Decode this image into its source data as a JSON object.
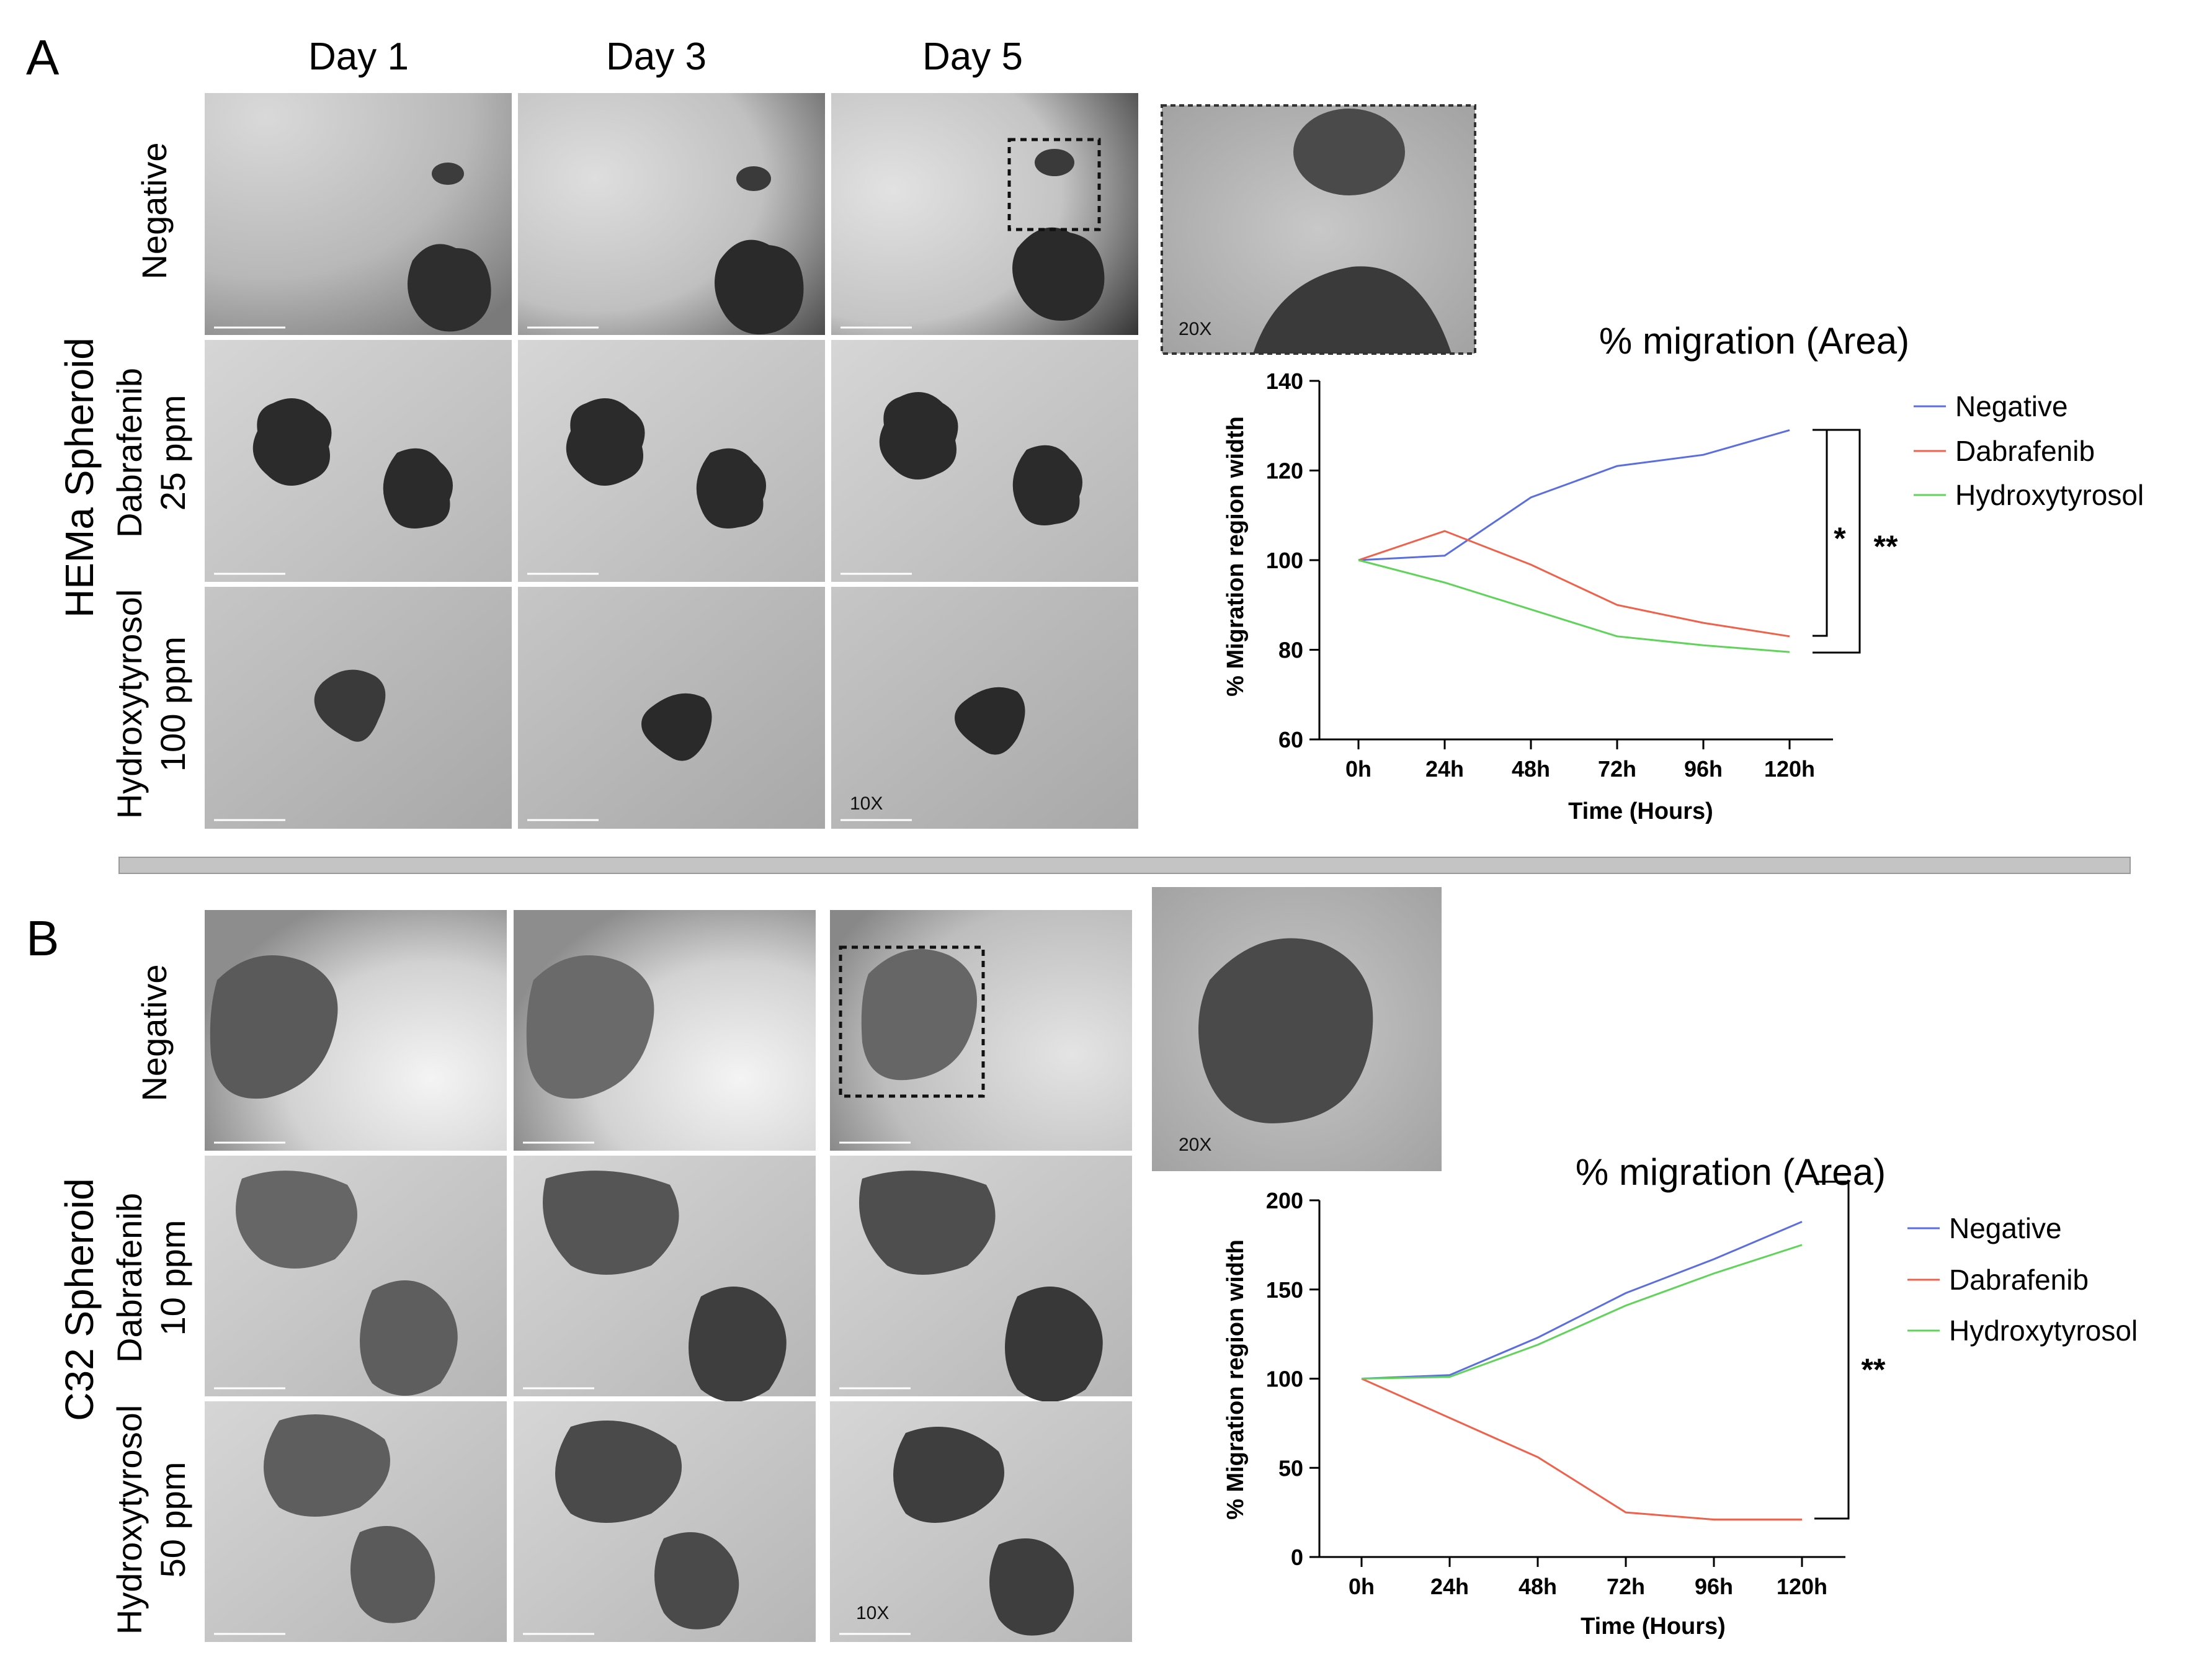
{
  "panels": [
    {
      "letter": "A",
      "spheroid_label": "HEMa Spheroid",
      "columns": [
        "Day 1",
        "Day 3",
        "Day 5"
      ],
      "rows": [
        {
          "lines": [
            "Negative"
          ]
        },
        {
          "lines": [
            "Dabrafenib",
            "25 ppm"
          ]
        },
        {
          "lines": [
            "Hydroxytyrosol",
            "100 ppm"
          ]
        }
      ],
      "magnification_main": "10X",
      "magnification_inset": "20X"
    },
    {
      "letter": "B",
      "spheroid_label": "C32 Spheroid",
      "columns": [],
      "rows": [
        {
          "lines": [
            "Negative"
          ]
        },
        {
          "lines": [
            "Dabrafenib",
            "10 ppm"
          ]
        },
        {
          "lines": [
            "Hydroxytyrosol",
            "50 ppm"
          ]
        }
      ],
      "magnification_main": "10X",
      "magnification_inset": "20X"
    }
  ],
  "chart_data": [
    {
      "type": "line",
      "title": "% migration (Area)",
      "xlabel": "Time (Hours)",
      "ylabel": "% Migration region width",
      "categories": [
        "0h",
        "24h",
        "48h",
        "72h",
        "96h",
        "120h"
      ],
      "ylim": [
        60,
        140
      ],
      "yticks": [
        60,
        80,
        100,
        120,
        140
      ],
      "series": [
        {
          "name": "Negative",
          "color": "#5b6ee1",
          "values": [
            100,
            101,
            114,
            121,
            123.5,
            129
          ]
        },
        {
          "name": "Dabrafenib",
          "color": "#f0604a",
          "values": [
            100,
            106.5,
            99,
            90,
            86,
            83
          ]
        },
        {
          "name": "Hydroxytyrosol",
          "color": "#5fd35a",
          "values": [
            100,
            95,
            89,
            83,
            81,
            79.5
          ]
        }
      ],
      "legend": "top-right",
      "significance": [
        {
          "label": "*",
          "from_series": "Negative",
          "to_series": "Dabrafenib"
        },
        {
          "label": "**",
          "from_series": "Negative",
          "to_series": "Hydroxytyrosol"
        }
      ]
    },
    {
      "type": "line",
      "title": "% migration (Area)",
      "xlabel": "Time (Hours)",
      "ylabel": "% Migration region width",
      "categories": [
        "0h",
        "24h",
        "48h",
        "72h",
        "96h",
        "120h"
      ],
      "ylim": [
        0,
        200
      ],
      "yticks": [
        0,
        50,
        100,
        150,
        200
      ],
      "series": [
        {
          "name": "Negative",
          "color": "#5b6ee1",
          "values": [
            100,
            102,
            123,
            148,
            167,
            188
          ]
        },
        {
          "name": "Dabrafenib",
          "color": "#f0604a",
          "values": [
            100,
            78,
            56,
            25,
            21,
            21
          ]
        },
        {
          "name": "Hydroxytyrosol",
          "color": "#5fd35a",
          "values": [
            100,
            101,
            119,
            141,
            159,
            175
          ]
        }
      ],
      "legend": "top-right",
      "significance": [
        {
          "label": "**",
          "from_series": "Negative",
          "to_series": "Dabrafenib"
        }
      ]
    }
  ]
}
